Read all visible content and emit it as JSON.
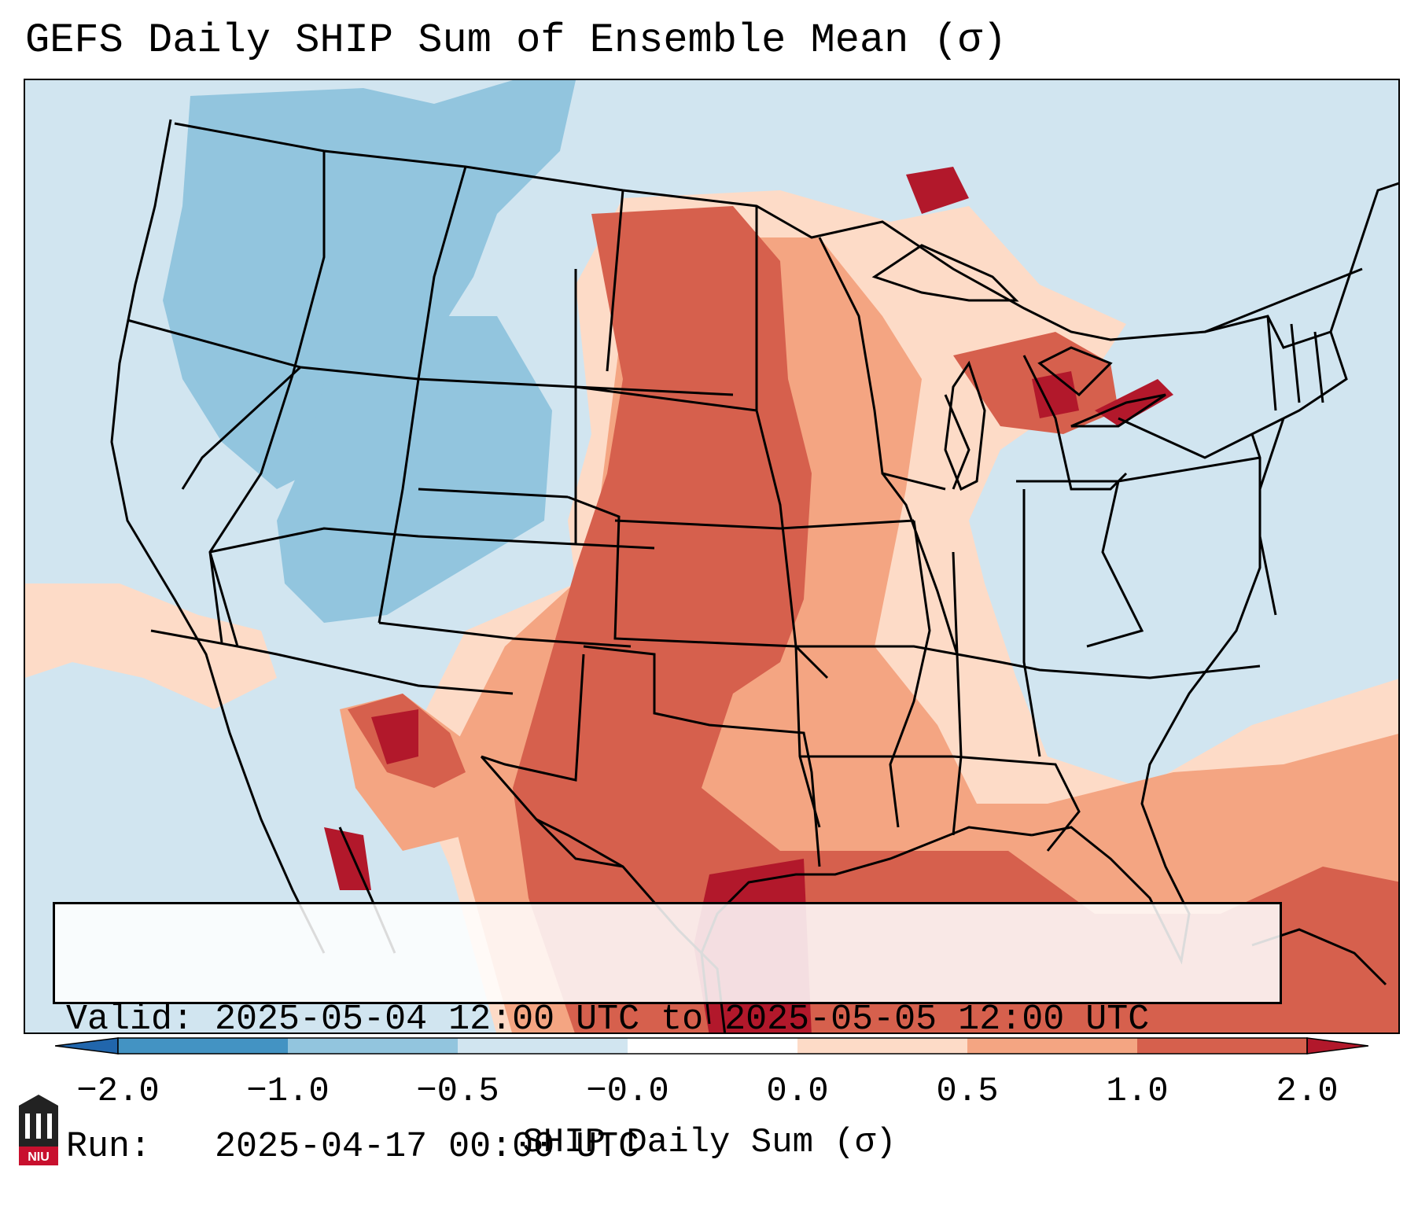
{
  "title": "GEFS Daily SHIP Sum of Ensemble Mean (σ)",
  "info": {
    "valid_line": "Valid: 2025-05-04 12:00 UTC to 2025-05-05 12:00 UTC",
    "run_line": "Run:   2025-04-17 00:00 UTC"
  },
  "colorbar": {
    "label": "SHIP Daily Sum (σ)",
    "ticks": [
      "−2.0",
      "−1.0",
      "−0.5",
      "−0.0",
      "0.0",
      "0.5",
      "1.0",
      "2.0"
    ],
    "colors": [
      "#2166ac",
      "#4393c3",
      "#92c5de",
      "#d1e5f0",
      "#fddbc7",
      "#f4a582",
      "#d6604d",
      "#b2182b"
    ],
    "extend": "both"
  },
  "map": {
    "field_colors": {
      "background": "#d1e5f0",
      "light_blue": "#92c5de",
      "light_orange": "#fddbc7",
      "orange": "#f4a582",
      "red": "#d6604d",
      "dark_red": "#b2182b"
    },
    "features": [
      "state boundaries",
      "country boundaries",
      "coastlines"
    ]
  },
  "logo": {
    "text": "NIU"
  }
}
